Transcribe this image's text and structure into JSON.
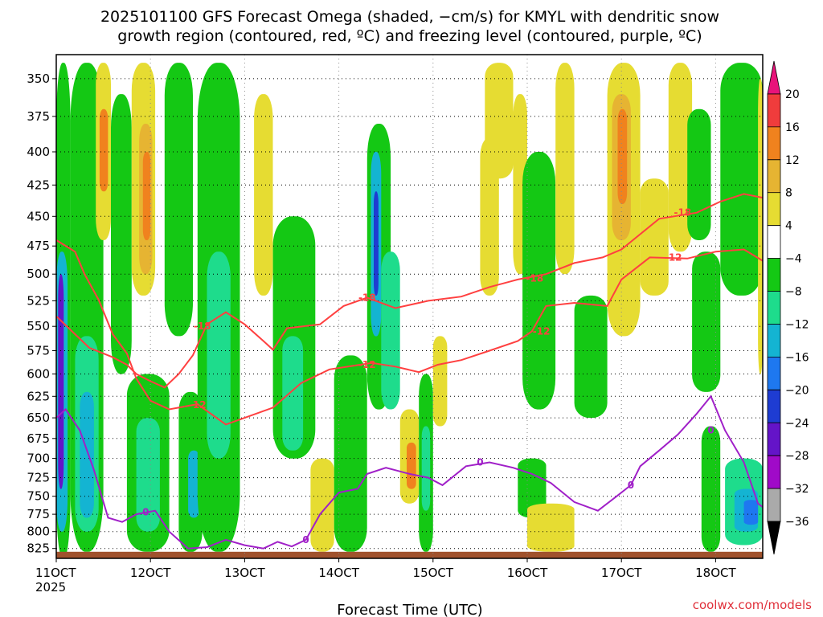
{
  "title": {
    "line1": "2025101100 GFS Forecast Omega (shaded, −cm/s) for KMYL with dendritic snow",
    "line2": "growth region (contoured, red, ºC) and freezing level (contoured, purple, ºC)"
  },
  "xlabel": "Forecast Time (UTC)",
  "credit": "coolwx.com/models",
  "chart_data": {
    "type": "heatmap",
    "x_ticks": [
      {
        "label": "11OCT",
        "sublabel": "2025",
        "day": 11
      },
      {
        "label": "12OCT",
        "day": 12
      },
      {
        "label": "13OCT",
        "day": 13
      },
      {
        "label": "14OCT",
        "day": 14
      },
      {
        "label": "15OCT",
        "day": 15
      },
      {
        "label": "16OCT",
        "day": 16
      },
      {
        "label": "17OCT",
        "day": 17
      },
      {
        "label": "18OCT",
        "day": 18
      }
    ],
    "xlim": [
      11,
      18.5
    ],
    "y_ticks": [
      350,
      375,
      400,
      425,
      450,
      475,
      500,
      525,
      550,
      575,
      600,
      625,
      650,
      675,
      700,
      725,
      750,
      775,
      800,
      825
    ],
    "ylim": [
      335,
      840
    ],
    "yscale": "log-pressure",
    "grid": true,
    "colorbar": {
      "labels": [
        "20",
        "16",
        "12",
        "8",
        "4",
        "−4",
        "−8",
        "−12",
        "−16",
        "−20",
        "−24",
        "−28",
        "−32",
        "−36"
      ],
      "colors": [
        "#e8137a",
        "#f03c3c",
        "#f0821e",
        "#e6b432",
        "#e6dc32",
        "#ffffff",
        "#14c814",
        "#1edc8c",
        "#14b4d2",
        "#1e78f0",
        "#1e3cd2",
        "#6414c8",
        "#a00ac8",
        "#aaaaaa",
        "#000000"
      ]
    },
    "fill_colors": {
      "p4": "#e6dc32",
      "p8": "#e6b432",
      "p12": "#f0821e",
      "n4": "#14c814",
      "n8": "#1edc8c",
      "n12": "#14b4d2",
      "n16": "#1e78f0",
      "n20": "#1e3cd2",
      "n24": "#6414c8",
      "ground": "#a0522d"
    },
    "omega_regions": [
      {
        "x0": 11.0,
        "x1": 11.15,
        "p0": 340,
        "p1": 840,
        "level": "n4"
      },
      {
        "x0": 11.0,
        "x1": 11.12,
        "p0": 480,
        "p1": 800,
        "level": "n12"
      },
      {
        "x0": 11.02,
        "x1": 11.08,
        "p0": 500,
        "p1": 740,
        "level": "n24"
      },
      {
        "x0": 11.15,
        "x1": 11.5,
        "p0": 340,
        "p1": 830,
        "level": "n4"
      },
      {
        "x0": 11.2,
        "x1": 11.45,
        "p0": 560,
        "p1": 800,
        "level": "n8"
      },
      {
        "x0": 11.25,
        "x1": 11.4,
        "p0": 620,
        "p1": 780,
        "level": "n12"
      },
      {
        "x0": 11.42,
        "x1": 11.58,
        "p0": 340,
        "p1": 470,
        "level": "p4"
      },
      {
        "x0": 11.46,
        "x1": 11.55,
        "p0": 370,
        "p1": 430,
        "level": "p12"
      },
      {
        "x0": 11.58,
        "x1": 11.8,
        "p0": 360,
        "p1": 600,
        "level": "n4"
      },
      {
        "x0": 11.8,
        "x1": 12.05,
        "p0": 340,
        "p1": 520,
        "level": "p4"
      },
      {
        "x0": 11.88,
        "x1": 12.02,
        "p0": 380,
        "p1": 500,
        "level": "p8"
      },
      {
        "x0": 11.92,
        "x1": 12.0,
        "p0": 400,
        "p1": 470,
        "level": "p12"
      },
      {
        "x0": 11.75,
        "x1": 12.2,
        "p0": 600,
        "p1": 830,
        "level": "n4"
      },
      {
        "x0": 11.85,
        "x1": 12.1,
        "p0": 650,
        "p1": 800,
        "level": "n8"
      },
      {
        "x0": 12.15,
        "x1": 12.45,
        "p0": 340,
        "p1": 560,
        "level": "n4"
      },
      {
        "x0": 12.3,
        "x1": 12.55,
        "p0": 620,
        "p1": 830,
        "level": "n4"
      },
      {
        "x0": 12.4,
        "x1": 12.52,
        "p0": 690,
        "p1": 780,
        "level": "n12"
      },
      {
        "x0": 12.5,
        "x1": 12.95,
        "p0": 340,
        "p1": 830,
        "level": "n4"
      },
      {
        "x0": 12.6,
        "x1": 12.85,
        "p0": 480,
        "p1": 700,
        "level": "n8"
      },
      {
        "x0": 13.1,
        "x1": 13.3,
        "p0": 360,
        "p1": 520,
        "level": "p4"
      },
      {
        "x0": 13.3,
        "x1": 13.75,
        "p0": 450,
        "p1": 700,
        "level": "n4"
      },
      {
        "x0": 13.4,
        "x1": 13.62,
        "p0": 560,
        "p1": 690,
        "level": "n8"
      },
      {
        "x0": 13.7,
        "x1": 13.95,
        "p0": 700,
        "p1": 830,
        "level": "p4"
      },
      {
        "x0": 13.95,
        "x1": 14.3,
        "p0": 580,
        "p1": 830,
        "level": "n4"
      },
      {
        "x0": 14.3,
        "x1": 14.55,
        "p0": 380,
        "p1": 640,
        "level": "n4"
      },
      {
        "x0": 14.34,
        "x1": 14.45,
        "p0": 400,
        "p1": 560,
        "level": "n12"
      },
      {
        "x0": 14.37,
        "x1": 14.42,
        "p0": 430,
        "p1": 520,
        "level": "n20"
      },
      {
        "x0": 14.45,
        "x1": 14.65,
        "p0": 480,
        "p1": 640,
        "level": "n8"
      },
      {
        "x0": 14.65,
        "x1": 14.85,
        "p0": 640,
        "p1": 760,
        "level": "p4"
      },
      {
        "x0": 14.72,
        "x1": 14.82,
        "p0": 680,
        "p1": 740,
        "level": "p12"
      },
      {
        "x0": 14.85,
        "x1": 15.0,
        "p0": 600,
        "p1": 830,
        "level": "n4"
      },
      {
        "x0": 14.88,
        "x1": 14.97,
        "p0": 660,
        "p1": 770,
        "level": "n8"
      },
      {
        "x0": 15.0,
        "x1": 15.15,
        "p0": 560,
        "p1": 660,
        "level": "p4"
      },
      {
        "x0": 15.5,
        "x1": 15.7,
        "p0": 390,
        "p1": 520,
        "level": "p4"
      },
      {
        "x0": 15.55,
        "x1": 15.85,
        "p0": 340,
        "p1": 420,
        "level": "p4"
      },
      {
        "x0": 15.85,
        "x1": 16.0,
        "p0": 360,
        "p1": 500,
        "level": "p4"
      },
      {
        "x0": 15.95,
        "x1": 16.3,
        "p0": 400,
        "p1": 640,
        "level": "n4"
      },
      {
        "x0": 15.9,
        "x1": 16.2,
        "p0": 700,
        "p1": 780,
        "level": "n4"
      },
      {
        "x0": 16.0,
        "x1": 16.5,
        "p0": 760,
        "p1": 830,
        "level": "p4"
      },
      {
        "x0": 16.3,
        "x1": 16.5,
        "p0": 340,
        "p1": 500,
        "level": "p4"
      },
      {
        "x0": 16.5,
        "x1": 16.85,
        "p0": 520,
        "p1": 650,
        "level": "n4"
      },
      {
        "x0": 16.85,
        "x1": 17.2,
        "p0": 340,
        "p1": 560,
        "level": "p4"
      },
      {
        "x0": 16.9,
        "x1": 17.1,
        "p0": 360,
        "p1": 470,
        "level": "p8"
      },
      {
        "x0": 16.96,
        "x1": 17.06,
        "p0": 370,
        "p1": 440,
        "level": "p12"
      },
      {
        "x0": 17.2,
        "x1": 17.5,
        "p0": 420,
        "p1": 520,
        "level": "p4"
      },
      {
        "x0": 17.5,
        "x1": 17.75,
        "p0": 340,
        "p1": 480,
        "level": "p4"
      },
      {
        "x0": 17.7,
        "x1": 17.95,
        "p0": 370,
        "p1": 470,
        "level": "n4"
      },
      {
        "x0": 17.75,
        "x1": 18.05,
        "p0": 480,
        "p1": 620,
        "level": "n4"
      },
      {
        "x0": 17.85,
        "x1": 18.05,
        "p0": 660,
        "p1": 830,
        "level": "n4"
      },
      {
        "x0": 18.05,
        "x1": 18.5,
        "p0": 340,
        "p1": 520,
        "level": "n4"
      },
      {
        "x0": 18.1,
        "x1": 18.5,
        "p0": 700,
        "p1": 820,
        "level": "n8"
      },
      {
        "x0": 18.2,
        "x1": 18.45,
        "p0": 740,
        "p1": 800,
        "level": "n12"
      },
      {
        "x0": 18.3,
        "x1": 18.45,
        "p0": 755,
        "p1": 790,
        "level": "n16"
      },
      {
        "x0": 18.45,
        "x1": 18.5,
        "p0": 350,
        "p1": 600,
        "level": "p4"
      }
    ],
    "ground_level": 830,
    "contours": [
      {
        "name": "-18",
        "color": "#ff4040",
        "points": [
          [
            11.0,
            540
          ],
          [
            11.2,
            558
          ],
          [
            11.35,
            572
          ],
          [
            11.6,
            582
          ],
          [
            11.75,
            590
          ],
          [
            11.85,
            600
          ],
          [
            12.0,
            608
          ],
          [
            12.15,
            615
          ],
          [
            12.3,
            600
          ],
          [
            12.45,
            580
          ],
          [
            12.6,
            548
          ],
          [
            12.8,
            536
          ],
          [
            13.0,
            548
          ],
          [
            13.2,
            565
          ],
          [
            13.3,
            574
          ],
          [
            13.45,
            552
          ],
          [
            13.8,
            548
          ],
          [
            14.05,
            530
          ],
          [
            14.3,
            522
          ],
          [
            14.6,
            532
          ],
          [
            14.95,
            525
          ],
          [
            15.3,
            521
          ],
          [
            15.6,
            512
          ],
          [
            15.9,
            505
          ],
          [
            16.2,
            500
          ],
          [
            16.5,
            490
          ],
          [
            16.8,
            485
          ],
          [
            17.0,
            478
          ],
          [
            17.4,
            452
          ],
          [
            17.8,
            447
          ],
          [
            18.05,
            438
          ],
          [
            18.3,
            432
          ],
          [
            18.5,
            435
          ]
        ]
      },
      {
        "name": "-12",
        "color": "#ff4040",
        "points": [
          [
            11.0,
            470
          ],
          [
            11.2,
            480
          ],
          [
            11.3,
            500
          ],
          [
            11.45,
            524
          ],
          [
            11.6,
            558
          ],
          [
            11.75,
            578
          ],
          [
            11.85,
            605
          ],
          [
            12.0,
            630
          ],
          [
            12.2,
            640
          ],
          [
            12.5,
            634
          ],
          [
            12.8,
            658
          ],
          [
            13.0,
            650
          ],
          [
            13.3,
            638
          ],
          [
            13.6,
            610
          ],
          [
            13.9,
            595
          ],
          [
            14.1,
            592
          ],
          [
            14.35,
            588
          ],
          [
            14.6,
            592
          ],
          [
            14.85,
            598
          ],
          [
            15.05,
            590
          ],
          [
            15.3,
            585
          ],
          [
            15.6,
            575
          ],
          [
            15.9,
            565
          ],
          [
            16.05,
            555
          ],
          [
            16.2,
            530
          ],
          [
            16.5,
            527
          ],
          [
            16.85,
            530
          ],
          [
            17.0,
            505
          ],
          [
            17.3,
            485
          ],
          [
            17.7,
            486
          ],
          [
            18.0,
            480
          ],
          [
            18.3,
            478
          ],
          [
            18.5,
            488
          ]
        ]
      },
      {
        "name": "0",
        "color": "#a020c8",
        "points": [
          [
            11.0,
            650
          ],
          [
            11.1,
            640
          ],
          [
            11.25,
            665
          ],
          [
            11.4,
            715
          ],
          [
            11.55,
            780
          ],
          [
            11.7,
            786
          ],
          [
            11.85,
            775
          ],
          [
            12.05,
            770
          ],
          [
            12.2,
            800
          ],
          [
            12.4,
            825
          ],
          [
            12.6,
            823
          ],
          [
            12.8,
            812
          ],
          [
            13.0,
            820
          ],
          [
            13.2,
            825
          ],
          [
            13.35,
            815
          ],
          [
            13.5,
            822
          ],
          [
            13.65,
            812
          ],
          [
            13.8,
            775
          ],
          [
            14.0,
            745
          ],
          [
            14.2,
            740
          ],
          [
            14.3,
            720
          ],
          [
            14.5,
            712
          ],
          [
            14.75,
            720
          ],
          [
            14.95,
            725
          ],
          [
            15.1,
            735
          ],
          [
            15.35,
            710
          ],
          [
            15.6,
            705
          ],
          [
            15.85,
            712
          ],
          [
            16.05,
            720
          ],
          [
            16.25,
            732
          ],
          [
            16.5,
            758
          ],
          [
            16.75,
            770
          ],
          [
            16.95,
            750
          ],
          [
            17.1,
            735
          ],
          [
            17.2,
            710
          ],
          [
            17.4,
            690
          ],
          [
            17.6,
            670
          ],
          [
            17.8,
            645
          ],
          [
            17.95,
            625
          ],
          [
            18.1,
            665
          ],
          [
            18.3,
            705
          ],
          [
            18.45,
            760
          ],
          [
            18.5,
            765
          ]
        ]
      }
    ],
    "contour_labels": [
      {
        "text": "-18",
        "x": 12.55,
        "p": 550,
        "color": "#ff4040"
      },
      {
        "text": "-18",
        "x": 14.3,
        "p": 522,
        "color": "#ff4040"
      },
      {
        "text": "-18",
        "x": 16.08,
        "p": 504,
        "color": "#ff4040"
      },
      {
        "text": "-18",
        "x": 17.65,
        "p": 447,
        "color": "#ff4040"
      },
      {
        "text": "-12",
        "x": 12.5,
        "p": 635,
        "color": "#ff4040"
      },
      {
        "text": "-12",
        "x": 14.3,
        "p": 590,
        "color": "#ff4040"
      },
      {
        "text": "-12",
        "x": 16.15,
        "p": 555,
        "color": "#ff4040"
      },
      {
        "text": "-12",
        "x": 17.55,
        "p": 485,
        "color": "#ff4040"
      },
      {
        "text": "0",
        "x": 11.95,
        "p": 772,
        "color": "#a020c8"
      },
      {
        "text": "0",
        "x": 13.65,
        "p": 812,
        "color": "#a020c8"
      },
      {
        "text": "0",
        "x": 15.5,
        "p": 705,
        "color": "#a020c8"
      },
      {
        "text": "0",
        "x": 17.1,
        "p": 735,
        "color": "#a020c8"
      },
      {
        "text": "0",
        "x": 17.95,
        "p": 665,
        "color": "#a020c8"
      }
    ]
  }
}
